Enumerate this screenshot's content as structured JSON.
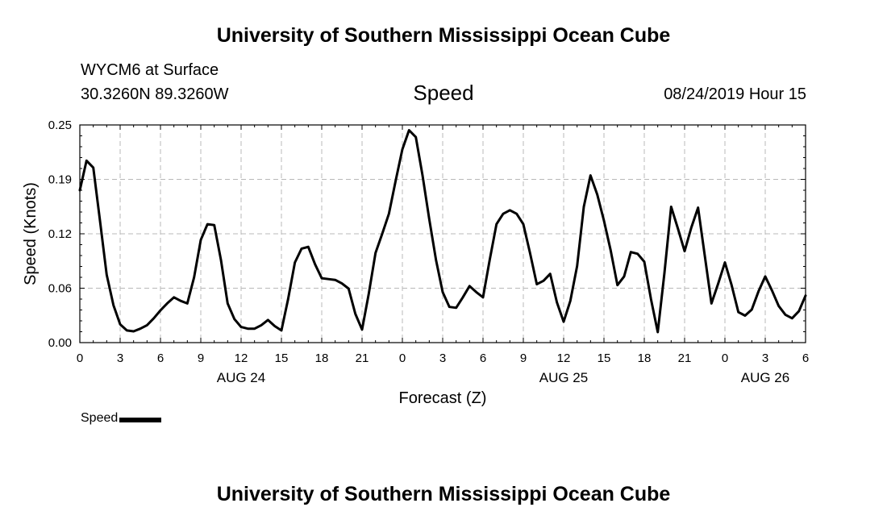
{
  "header": {
    "title": "University of Southern Mississippi Ocean Cube",
    "station": "WYCM6 at Surface",
    "coordinates": "30.3260N 89.3260W",
    "datetime": "08/24/2019 Hour 15",
    "footer_title": "University of Southern Mississippi Ocean Cube"
  },
  "chart_data": {
    "type": "line",
    "title": "Speed",
    "xlabel": "Forecast (Z)",
    "ylabel": "Speed (Knots)",
    "xlim": [
      0,
      54
    ],
    "ylim": [
      0,
      0.25
    ],
    "y_ticks": [
      "0.00",
      "0.06",
      "0.12",
      "0.19",
      "0.25"
    ],
    "x_tick_labels": [
      "0",
      "3",
      "6",
      "9",
      "12",
      "15",
      "18",
      "21",
      "0",
      "3",
      "6",
      "9",
      "12",
      "15",
      "18",
      "21",
      "0",
      "3",
      "6"
    ],
    "day_labels": [
      {
        "label": "AUG 24",
        "at": 12
      },
      {
        "label": "AUG 25",
        "at": 36
      },
      {
        "label": "AUG 26",
        "at": 51
      }
    ],
    "grid": true,
    "legend": "bottom-left",
    "series": [
      {
        "name": "Speed",
        "color": "#000000",
        "x": [
          0,
          0.5,
          1,
          1.5,
          2,
          2.5,
          3,
          3.5,
          4,
          4.5,
          5,
          5.5,
          6,
          6.5,
          7,
          7.5,
          8,
          8.5,
          9,
          9.5,
          10,
          10.5,
          11,
          11.5,
          12,
          12.5,
          13,
          13.5,
          14,
          14.5,
          15,
          15.5,
          16,
          16.5,
          17,
          17.5,
          18,
          18.5,
          19,
          19.5,
          20,
          20.5,
          21,
          21.5,
          22,
          22.5,
          23,
          23.5,
          24,
          24.5,
          25,
          25.5,
          26,
          26.5,
          27,
          27.5,
          28,
          28.5,
          29,
          29.5,
          30,
          30.5,
          31,
          31.5,
          32,
          32.5,
          33,
          33.5,
          34,
          34.5,
          35,
          35.5,
          36,
          36.5,
          37,
          37.5,
          38,
          38.5,
          39,
          39.5,
          40,
          40.5,
          41,
          41.5,
          42,
          42.5,
          43,
          43.5,
          44,
          44.5,
          45,
          45.5,
          46,
          46.5,
          47,
          47.5,
          48,
          48.5,
          49,
          49.5,
          50,
          50.5,
          51,
          51.5,
          52,
          52.5,
          53,
          53.5,
          54
        ],
        "values": [
          0.175,
          0.209,
          0.201,
          0.14,
          0.078,
          0.043,
          0.021,
          0.014,
          0.013,
          0.016,
          0.02,
          0.028,
          0.037,
          0.045,
          0.052,
          0.048,
          0.045,
          0.075,
          0.118,
          0.136,
          0.135,
          0.095,
          0.045,
          0.027,
          0.018,
          0.016,
          0.016,
          0.02,
          0.026,
          0.019,
          0.014,
          0.05,
          0.092,
          0.108,
          0.11,
          0.09,
          0.074,
          0.073,
          0.072,
          0.068,
          0.062,
          0.033,
          0.015,
          0.056,
          0.103,
          0.125,
          0.148,
          0.186,
          0.222,
          0.244,
          0.236,
          0.192,
          0.142,
          0.095,
          0.058,
          0.041,
          0.04,
          0.052,
          0.065,
          0.058,
          0.052,
          0.095,
          0.136,
          0.148,
          0.152,
          0.148,
          0.136,
          0.103,
          0.067,
          0.071,
          0.079,
          0.046,
          0.024,
          0.048,
          0.088,
          0.156,
          0.192,
          0.17,
          0.14,
          0.106,
          0.066,
          0.076,
          0.104,
          0.102,
          0.093,
          0.05,
          0.012,
          0.08,
          0.156,
          0.131,
          0.105,
          0.132,
          0.155,
          0.1,
          0.045,
          0.068,
          0.092,
          0.066,
          0.035,
          0.031,
          0.038,
          0.059,
          0.076,
          0.06,
          0.042,
          0.032,
          0.028,
          0.036,
          0.054
        ]
      }
    ]
  }
}
